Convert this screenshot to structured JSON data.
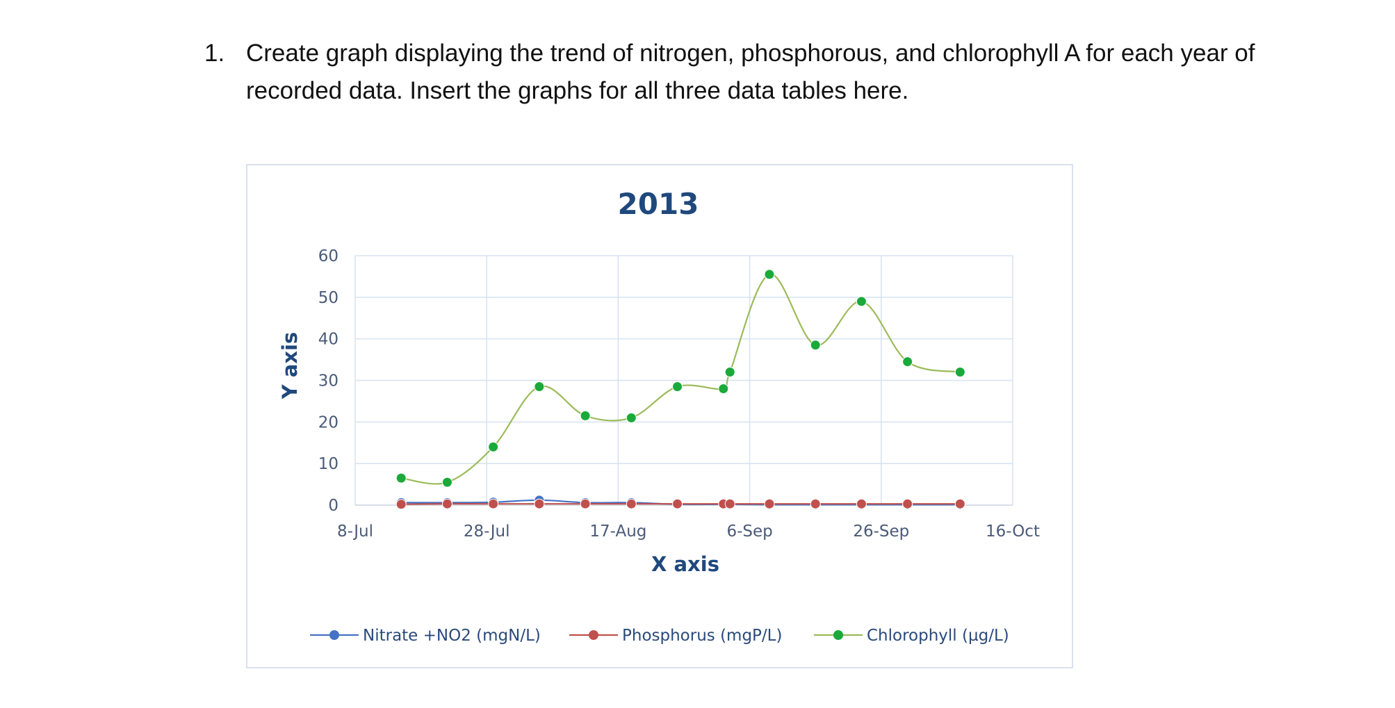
{
  "question": {
    "number": "1.",
    "text": "Create graph displaying the trend of nitrogen, phosphorous, and chlorophyll A for each year of recorded data. Insert the graphs for all three data tables here."
  },
  "chart_data": {
    "type": "line",
    "title": "2013",
    "xlabel": "X axis",
    "ylabel": "Y axis",
    "xlim": [
      "2013-07-08",
      "2013-10-16"
    ],
    "ylim": [
      0,
      60
    ],
    "x_ticks": [
      "8-Jul",
      "28-Jul",
      "17-Aug",
      "6-Sep",
      "26-Sep",
      "16-Oct"
    ],
    "y_ticks": [
      0,
      10,
      20,
      30,
      40,
      50,
      60
    ],
    "grid": true,
    "legend_position": "bottom",
    "smoothed": true,
    "series": [
      {
        "name": "Nitrate +NO2 (mgN/L)",
        "color": "#4472c4",
        "points": [
          {
            "x": "2013-07-15",
            "y": 0.6
          },
          {
            "x": "2013-07-22",
            "y": 0.6
          },
          {
            "x": "2013-07-29",
            "y": 0.7
          },
          {
            "x": "2013-08-05",
            "y": 1.2
          },
          {
            "x": "2013-08-12",
            "y": 0.6
          },
          {
            "x": "2013-08-19",
            "y": 0.6
          },
          {
            "x": "2013-08-26",
            "y": 0.2
          },
          {
            "x": "2013-09-02",
            "y": 0.2
          },
          {
            "x": "2013-09-03",
            "y": 0.2
          },
          {
            "x": "2013-09-09",
            "y": 0.1
          },
          {
            "x": "2013-09-16",
            "y": 0.1
          },
          {
            "x": "2013-09-23",
            "y": 0.1
          },
          {
            "x": "2013-09-30",
            "y": 0.1
          },
          {
            "x": "2013-10-08",
            "y": 0.1
          }
        ]
      },
      {
        "name": "Phosphorus (mgP/L)",
        "color": "#c0504d",
        "points": [
          {
            "x": "2013-07-15",
            "y": 0.2
          },
          {
            "x": "2013-07-22",
            "y": 0.3
          },
          {
            "x": "2013-07-29",
            "y": 0.3
          },
          {
            "x": "2013-08-05",
            "y": 0.3
          },
          {
            "x": "2013-08-12",
            "y": 0.3
          },
          {
            "x": "2013-08-19",
            "y": 0.3
          },
          {
            "x": "2013-08-26",
            "y": 0.3
          },
          {
            "x": "2013-09-02",
            "y": 0.3
          },
          {
            "x": "2013-09-03",
            "y": 0.3
          },
          {
            "x": "2013-09-09",
            "y": 0.3
          },
          {
            "x": "2013-09-16",
            "y": 0.3
          },
          {
            "x": "2013-09-23",
            "y": 0.3
          },
          {
            "x": "2013-09-30",
            "y": 0.3
          },
          {
            "x": "2013-10-08",
            "y": 0.3
          }
        ]
      },
      {
        "name": "Chlorophyll (µg/L)",
        "color": "#9bbb59",
        "marker_color": "#1aaa3a",
        "points": [
          {
            "x": "2013-07-15",
            "y": 6.5
          },
          {
            "x": "2013-07-22",
            "y": 5.5
          },
          {
            "x": "2013-07-29",
            "y": 14.0
          },
          {
            "x": "2013-08-05",
            "y": 28.5
          },
          {
            "x": "2013-08-12",
            "y": 21.5
          },
          {
            "x": "2013-08-19",
            "y": 21.0
          },
          {
            "x": "2013-08-26",
            "y": 28.5
          },
          {
            "x": "2013-09-02",
            "y": 28.0
          },
          {
            "x": "2013-09-03",
            "y": 32.0
          },
          {
            "x": "2013-09-09",
            "y": 55.5
          },
          {
            "x": "2013-09-16",
            "y": 38.5
          },
          {
            "x": "2013-09-23",
            "y": 49.0
          },
          {
            "x": "2013-09-30",
            "y": 34.5
          },
          {
            "x": "2013-10-08",
            "y": 32.0
          }
        ]
      }
    ]
  }
}
